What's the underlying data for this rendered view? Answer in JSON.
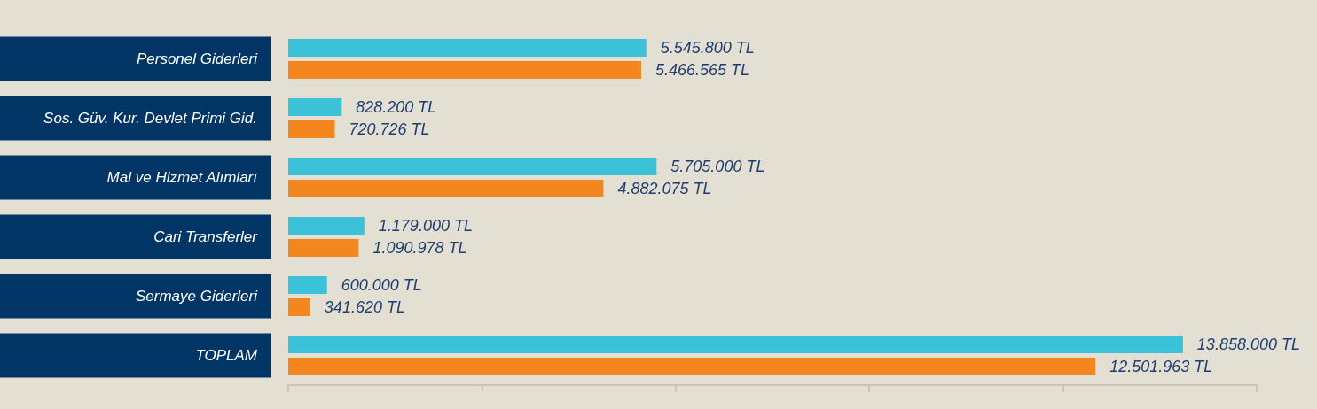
{
  "chart_data": {
    "type": "bar",
    "orientation": "horizontal",
    "categories": [
      "Personel Giderleri",
      "Sos. Güv. Kur. Devlet Primi Gid.",
      "Mal ve Hizmet Alımları",
      "Cari Transferler",
      "Sermaye Giderleri",
      "TOPLAM"
    ],
    "series": [
      {
        "color": "#3bc1d8",
        "values": [
          5545800,
          828200,
          5705000,
          1179000,
          600000,
          13858000
        ],
        "value_labels": [
          "5.545.800 TL",
          "828.200 TL",
          "5.705.000 TL",
          "1.179.000 TL",
          "600.000 TL",
          "13.858.000 TL"
        ]
      },
      {
        "color": "#f48620",
        "values": [
          5466565,
          720726,
          4882075,
          1090978,
          341620,
          12501963
        ],
        "value_labels": [
          "5.466.565 TL",
          "720.726 TL",
          "4.882.075 TL",
          "1.090.978 TL",
          "341.620 TL",
          "12.501.963 TL"
        ]
      }
    ],
    "xlim": [
      0,
      15000000
    ],
    "xticks": [
      {
        "value": 0,
        "label": null
      },
      {
        "value": 3000000,
        "label": null
      },
      {
        "value": 6000000,
        "label": null
      },
      {
        "value": 9000000,
        "label": null
      },
      {
        "value": 12000000,
        "label": null
      },
      {
        "value": 15000000,
        "label": null
      }
    ],
    "tick_labels": "y",
    "grid": false
  }
}
